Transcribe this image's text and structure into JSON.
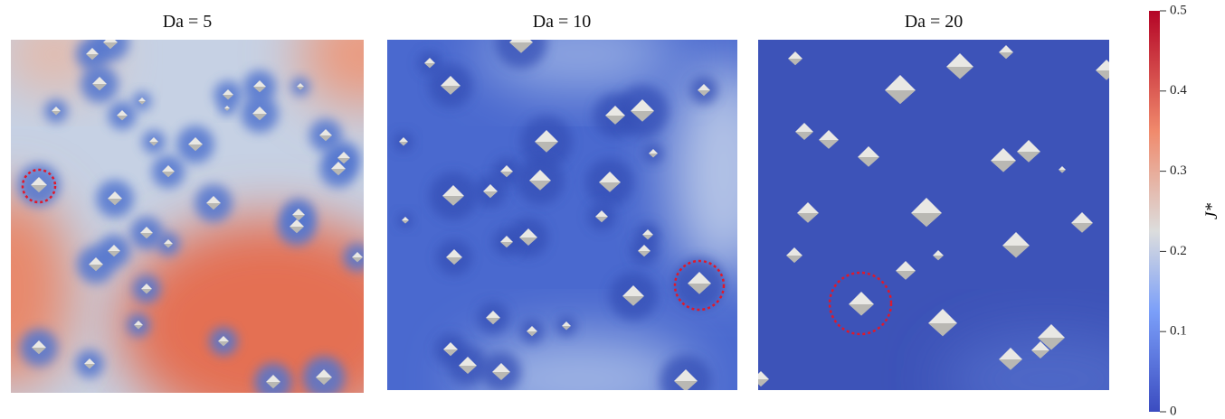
{
  "panels": [
    {
      "title": "Da = 5"
    },
    {
      "title": "Da = 10"
    },
    {
      "title": "Da = 20"
    }
  ],
  "colorbar": {
    "label": "J*",
    "lim": [
      0,
      0.5
    ],
    "ticks": [
      0,
      0.1,
      0.2,
      0.3,
      0.4,
      0.5
    ]
  }
}
